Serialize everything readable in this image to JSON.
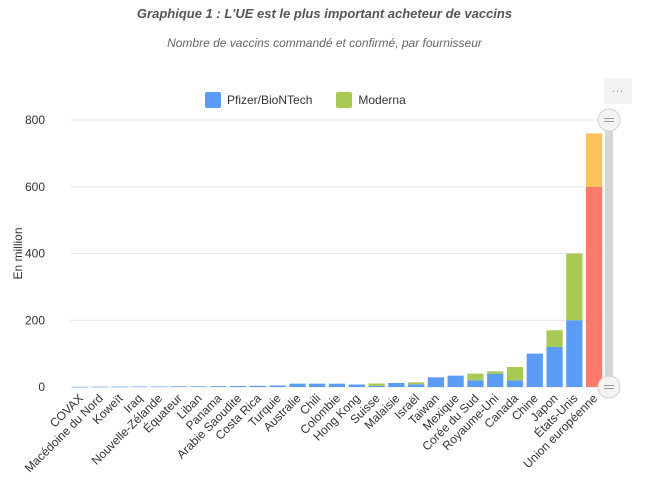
{
  "title": "Graphique 1 : L'UE est le plus important acheteur de vaccins",
  "subtitle": "Nombre de vaccins commandé et confirmé, par fournisseur",
  "menu": {
    "icon": "ellipsis-icon",
    "label": "..."
  },
  "colors": {
    "pfizer": "#5b9cf6",
    "moderna": "#a9c955",
    "eu_pfizer": "#fb7b6b",
    "eu_moderna": "#fbc35a",
    "grid": "#e6e6e6",
    "scrollbar": "#d6d6d6"
  },
  "chart_data": {
    "type": "bar",
    "stacked": true,
    "ylabel": "En million",
    "ylim": [
      0,
      800
    ],
    "yticks": [
      0,
      200,
      400,
      600,
      800
    ],
    "grid": true,
    "legend_position": "top-center",
    "categories": [
      "COVAX",
      "Macédoine du Nord",
      "Koweït",
      "Iraq",
      "Nouvelle-Zélande",
      "Équateur",
      "Liban",
      "Panama",
      "Arabie Saoudite",
      "Costa Rica",
      "Turquie",
      "Australie",
      "Chili",
      "Colombie",
      "Hong Kong",
      "Suisse",
      "Malaisie",
      "Israël",
      "Taiwan",
      "Mexique",
      "Corée du Sud",
      "Royaume-Uni",
      "Canada",
      "Chine",
      "Japon",
      "États-Unis",
      "Union européenne"
    ],
    "series": [
      {
        "name": "Pfizer/BioNTech",
        "values": [
          0.5,
          0.8,
          1,
          1.5,
          1.5,
          2,
          2,
          2.5,
          3,
          3.5,
          4.5,
          10,
          10,
          10,
          7.5,
          3,
          12,
          8,
          29,
          34,
          20,
          40,
          20,
          100,
          120,
          200,
          600
        ]
      },
      {
        "name": "Moderna",
        "values": [
          0,
          0,
          0,
          0,
          0,
          0,
          0,
          0,
          0,
          0,
          0,
          0,
          0,
          0,
          0,
          7.5,
          0,
          6,
          0,
          0,
          20,
          7,
          40,
          0,
          50,
          200,
          160
        ]
      }
    ]
  }
}
